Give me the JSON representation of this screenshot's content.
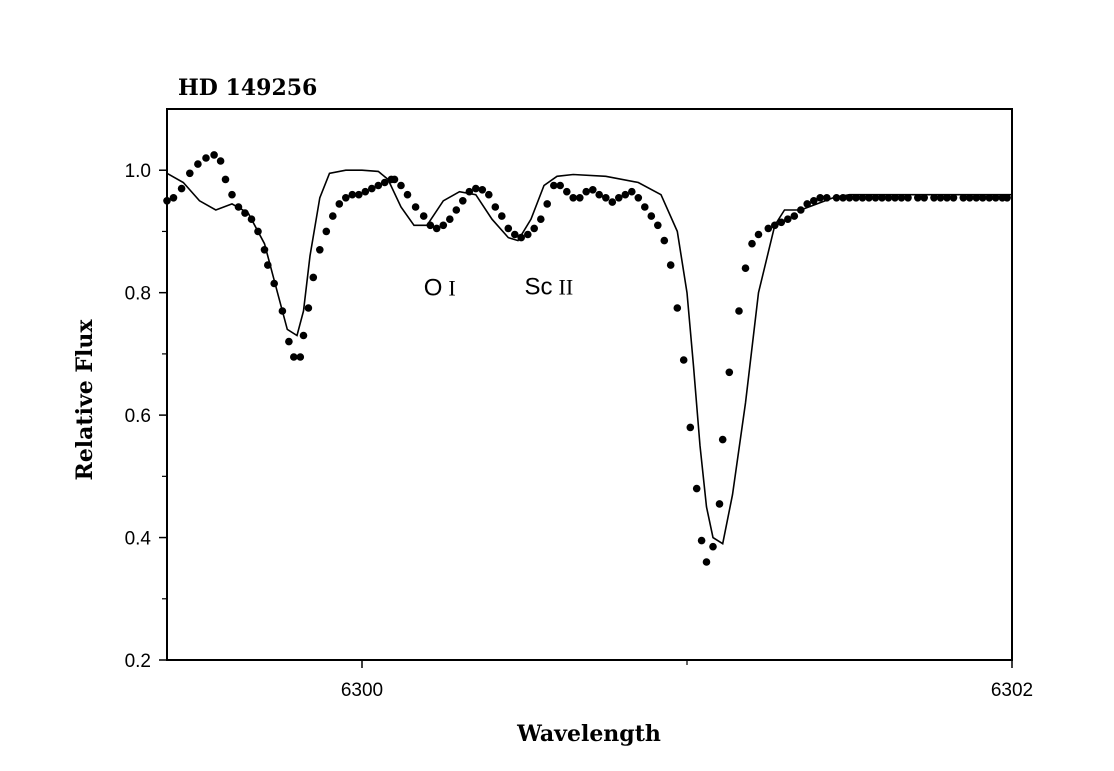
{
  "chart_data": {
    "type": "line",
    "title": "HD 149256",
    "xlabel": "Wavelength",
    "ylabel": "Relative Flux",
    "xlim": [
      6299.4,
      6302.0
    ],
    "ylim": [
      0.2,
      1.1
    ],
    "x_ticks_major": [
      6300,
      6302
    ],
    "x_ticks_minor": [
      6301
    ],
    "y_ticks_major": [
      0.2,
      0.4,
      0.6,
      0.8,
      1.0
    ],
    "y_ticks_minor": [
      0.3,
      0.5,
      0.7,
      0.9
    ],
    "grid": false,
    "legend": "none",
    "annotations": [
      {
        "element": "O",
        "ion": "I",
        "x": 6300.19,
        "y": 0.795
      },
      {
        "element": "Sc",
        "ion": "II",
        "x": 6300.5,
        "y": 0.797
      }
    ],
    "series": [
      {
        "style": "dots",
        "x": [
          6299.4,
          6299.42,
          6299.445,
          6299.47,
          6299.495,
          6299.52,
          6299.545,
          6299.565,
          6299.58,
          6299.6,
          6299.62,
          6299.64,
          6299.66,
          6299.68,
          6299.7,
          6299.71,
          6299.73,
          6299.755,
          6299.775,
          6299.79,
          6299.81,
          6299.82,
          6299.835,
          6299.85,
          6299.87,
          6299.89,
          6299.91,
          6299.93,
          6299.95,
          6299.97,
          6299.99,
          6300.01,
          6300.03,
          6300.05,
          6300.07,
          6300.09,
          6300.1,
          6300.12,
          6300.14,
          6300.165,
          6300.19,
          6300.21,
          6300.23,
          6300.25,
          6300.27,
          6300.29,
          6300.31,
          6300.33,
          6300.35,
          6300.37,
          6300.39,
          6300.41,
          6300.43,
          6300.45,
          6300.47,
          6300.49,
          6300.51,
          6300.53,
          6300.55,
          6300.57,
          6300.59,
          6300.61,
          6300.63,
          6300.65,
          6300.67,
          6300.69,
          6300.71,
          6300.73,
          6300.75,
          6300.77,
          6300.79,
          6300.81,
          6300.83,
          6300.85,
          6300.87,
          6300.89,
          6300.91,
          6300.93,
          6300.95,
          6300.97,
          6300.99,
          6301.01,
          6301.03,
          6301.045,
          6301.06,
          6301.08,
          6301.1,
          6301.11,
          6301.13,
          6301.16,
          6301.18,
          6301.2,
          6301.22,
          6301.25,
          6301.27,
          6301.29,
          6301.31,
          6301.33,
          6301.35,
          6301.37,
          6301.39,
          6301.41,
          6301.43,
          6301.46,
          6301.48,
          6301.5,
          6301.52,
          6301.54,
          6301.56,
          6301.58,
          6301.6,
          6301.62,
          6301.64,
          6301.66,
          6301.68,
          6301.71,
          6301.73,
          6301.76,
          6301.78,
          6301.8,
          6301.82,
          6301.85,
          6301.87,
          6301.89,
          6301.91,
          6301.93,
          6301.95,
          6301.97,
          6301.985
        ],
        "y": [
          0.95,
          0.955,
          0.97,
          0.995,
          1.01,
          1.02,
          1.025,
          1.015,
          0.985,
          0.96,
          0.94,
          0.93,
          0.92,
          0.9,
          0.87,
          0.845,
          0.815,
          0.77,
          0.72,
          0.695,
          0.695,
          0.73,
          0.775,
          0.825,
          0.87,
          0.9,
          0.925,
          0.945,
          0.955,
          0.96,
          0.96,
          0.965,
          0.97,
          0.975,
          0.98,
          0.985,
          0.985,
          0.975,
          0.96,
          0.94,
          0.925,
          0.91,
          0.905,
          0.91,
          0.92,
          0.935,
          0.95,
          0.965,
          0.97,
          0.968,
          0.96,
          0.94,
          0.925,
          0.905,
          0.895,
          0.89,
          0.895,
          0.905,
          0.92,
          0.945,
          0.975,
          0.975,
          0.965,
          0.955,
          0.955,
          0.965,
          0.968,
          0.96,
          0.955,
          0.948,
          0.955,
          0.96,
          0.965,
          0.955,
          0.94,
          0.925,
          0.91,
          0.885,
          0.845,
          0.775,
          0.69,
          0.58,
          0.48,
          0.395,
          0.36,
          0.385,
          0.455,
          0.56,
          0.67,
          0.77,
          0.84,
          0.88,
          0.895,
          0.905,
          0.91,
          0.915,
          0.92,
          0.925,
          0.935,
          0.945,
          0.95,
          0.955,
          0.955,
          0.955,
          0.955,
          0.955,
          0.955,
          0.955,
          0.955,
          0.955,
          0.955,
          0.955,
          0.955,
          0.955,
          0.955,
          0.955,
          0.955,
          0.955,
          0.955,
          0.955,
          0.955,
          0.955,
          0.955,
          0.955,
          0.955,
          0.955,
          0.955,
          0.955,
          0.955
        ]
      },
      {
        "style": "line",
        "x": [
          6299.4,
          6299.45,
          6299.5,
          6299.55,
          6299.6,
          6299.65,
          6299.7,
          6299.74,
          6299.77,
          6299.8,
          6299.82,
          6299.84,
          6299.87,
          6299.9,
          6299.95,
          6300.0,
          6300.05,
          6300.08,
          6300.12,
          6300.16,
          6300.2,
          6300.25,
          6300.3,
          6300.35,
          6300.4,
          6300.45,
          6300.48,
          6300.52,
          6300.56,
          6300.6,
          6300.65,
          6300.75,
          6300.85,
          6300.92,
          6300.97,
          6301.0,
          6301.02,
          6301.04,
          6301.06,
          6301.08,
          6301.11,
          6301.14,
          6301.18,
          6301.22,
          6301.27,
          6301.3,
          6301.35,
          6301.4,
          6301.45,
          6301.5,
          6301.55,
          6301.6,
          6301.65,
          6301.7,
          6301.75,
          6301.8,
          6301.85,
          6301.9,
          6301.95,
          6302.0
        ],
        "y": [
          0.995,
          0.98,
          0.95,
          0.935,
          0.945,
          0.93,
          0.88,
          0.8,
          0.74,
          0.73,
          0.77,
          0.86,
          0.955,
          0.995,
          1.0,
          1.0,
          0.998,
          0.985,
          0.94,
          0.91,
          0.91,
          0.95,
          0.965,
          0.96,
          0.92,
          0.89,
          0.885,
          0.92,
          0.975,
          0.99,
          0.993,
          0.99,
          0.98,
          0.96,
          0.9,
          0.8,
          0.68,
          0.55,
          0.45,
          0.4,
          0.39,
          0.47,
          0.62,
          0.8,
          0.91,
          0.935,
          0.935,
          0.945,
          0.955,
          0.96,
          0.96,
          0.96,
          0.96,
          0.96,
          0.96,
          0.96,
          0.96,
          0.96,
          0.96,
          0.96
        ]
      }
    ]
  }
}
